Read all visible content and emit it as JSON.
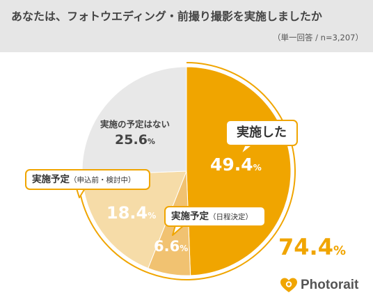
{
  "header": {
    "title": "あなたは、フォトウエディング・前撮り撮影を実施しましたか",
    "note": "（単一回答 / n=3,207）"
  },
  "chart_data": {
    "type": "pie",
    "title": "あなたは、フォトウエディング・前撮り撮影を実施しましたか",
    "unit": "%",
    "slices": [
      {
        "label": "実施した",
        "value": 49.4,
        "color": "#f0a500"
      },
      {
        "label": "実施予定（日程決定）",
        "label_main": "実施予定",
        "label_sub": "（日程決定）",
        "value": 6.6,
        "color": "#f1c271"
      },
      {
        "label": "実施予定（申込前・検討中）",
        "label_main": "実施予定",
        "label_sub": "（申込前・検討中）",
        "value": 18.4,
        "color": "#f6dca8"
      },
      {
        "label": "実施の予定はない",
        "value": 25.6,
        "color": "#e8e8e8"
      }
    ],
    "labels": {
      "done": "49.4",
      "scheduled": "6.6",
      "considering": "18.4",
      "none": "25.6",
      "unit": "%"
    },
    "total": {
      "value": 74.4,
      "text": "74.4",
      "unit": "%",
      "color": "#f0a500"
    }
  },
  "brand": {
    "name": "Photorait",
    "icon": "heart-camera-icon"
  }
}
